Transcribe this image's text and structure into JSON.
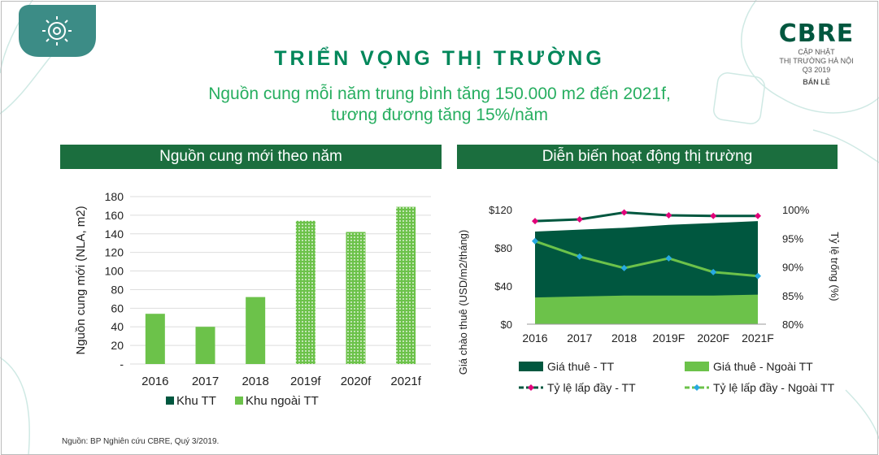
{
  "header": {
    "title": "TRIỂN VỌNG THỊ TRƯỜNG",
    "subtitle_line1": "Nguồn cung mỗi năm trung bình tăng 150.000 m2 đến 2021f,",
    "subtitle_line2": "tương đương tăng 15%/năm"
  },
  "brand": {
    "logo": "CBRE",
    "line1": "CẬP NHẬT",
    "line2": "THỊ TRƯỜNG HÀ NỘI",
    "line3": "Q3 2019",
    "section": "BÁN LẺ",
    "badge_icon": "gear-circuit-icon"
  },
  "colors": {
    "dark_green": "#00573F",
    "bright_green": "#6CC24A",
    "header_green": "#1B6E3E",
    "magenta": "#E2007A",
    "cyan": "#27A9E1"
  },
  "left_panel": {
    "heading": "Nguồn cung mới theo năm"
  },
  "right_panel": {
    "heading": "Diễn biến hoạt động thị trường"
  },
  "source": "Nguồn: BP Nghiên cứu CBRE, Quý 3/2019.",
  "chart_data": [
    {
      "type": "bar",
      "categories": [
        "2016",
        "2017",
        "2018",
        "2019f",
        "2020f",
        "2021f"
      ],
      "series": [
        {
          "name": "Khu TT",
          "values": [
            0,
            0,
            0,
            0,
            0,
            0
          ]
        },
        {
          "name": "Khu ngoài TT",
          "values": [
            54,
            40,
            72,
            154,
            142,
            169
          ]
        }
      ],
      "forecast_from": "2019f",
      "ylabel": "Nguồn cung mới (NLA, m2)",
      "xlabel": "",
      "ylim": [
        0,
        180
      ],
      "yticks": [
        "-",
        "20",
        "40",
        "60",
        "80",
        "100",
        "120",
        "140",
        "160",
        "180"
      ],
      "grid": true,
      "legend": "bottom"
    },
    {
      "type": "area",
      "categories": [
        "2016",
        "2017",
        "2018",
        "2019F",
        "2020F",
        "2021F"
      ],
      "series": [
        {
          "name": "Giá thuê - TT",
          "axis": "left",
          "values": [
            97,
            99,
            101,
            104,
            106,
            108
          ]
        },
        {
          "name": "Giá thuê - Ngoài TT",
          "axis": "left",
          "values": [
            28,
            29,
            30,
            30,
            30,
            31
          ]
        },
        {
          "name": "Tỷ lệ lấp đầy - TT",
          "axis": "right",
          "type": "line",
          "values": [
            98,
            98.3,
            99.5,
            99,
            98.9,
            98.9
          ]
        },
        {
          "name": "Tỷ lệ lấp đầy - Ngoài TT",
          "axis": "right",
          "type": "line",
          "values": [
            94.5,
            91.8,
            89.8,
            91.5,
            89.1,
            88.4
          ]
        }
      ],
      "ylabel": "Giá chào thuê (USD/m2/tháng)",
      "y2label": "Tỷ lệ trống (%)",
      "ylim": [
        0,
        120
      ],
      "yticks": [
        "$0",
        "$40",
        "$80",
        "$120"
      ],
      "y2lim": [
        80,
        100
      ],
      "y2ticks": [
        "80%",
        "85%",
        "90%",
        "95%",
        "100%"
      ],
      "legend": "bottom"
    }
  ]
}
